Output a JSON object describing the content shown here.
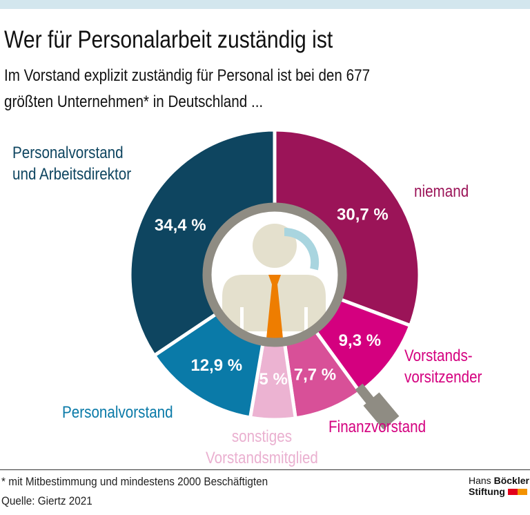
{
  "title": "Wer für Personalarbeit zuständig ist",
  "subtitle_lines": [
    "Im Vorstand explizit zuständig für Personal ist bei den 677",
    "größten Unternehmen* in Deutschland ..."
  ],
  "chart_data": {
    "type": "pie",
    "donut": true,
    "start": "12 o'clock, clockwise",
    "slices": [
      {
        "label": "niemand",
        "value": 30.7,
        "value_label": "30,7 %",
        "color": "#9b1458",
        "label_color": "#9b1458"
      },
      {
        "label": "Vorstands-\nvorsitzender",
        "value": 9.3,
        "value_label": "9,3 %",
        "color": "#d4007f",
        "label_color": "#d4007f"
      },
      {
        "label": "Finanzvorstand",
        "value": 7.7,
        "value_label": "7,7 %",
        "color": "#d85098",
        "label_color": "#d4007f"
      },
      {
        "label": "sonstiges\nVorstandsmitglied",
        "value": 5,
        "value_label": "5 %",
        "color": "#ecb3d2",
        "label_color": "#eab0d0"
      },
      {
        "label": "Personalvorstand",
        "value": 12.9,
        "value_label": "12,9 %",
        "color": "#0a7aa8",
        "label_color": "#0a7aa8"
      },
      {
        "label": "Personalvorstand\nund Arbeitsdirektor",
        "value": 34.4,
        "value_label": "34,4 %",
        "color": "#0e4560",
        "label_color": "#0e4560"
      }
    ]
  },
  "footnote": "* mit Mitbestimmung und mindestens 2000 Beschäftigten",
  "source": "Quelle: Giertz 2021",
  "logo": {
    "line1a": "Hans ",
    "line1b": "Böckler",
    "line2": "Stiftung",
    "colors": [
      "#e2001a",
      "#f39200"
    ]
  }
}
